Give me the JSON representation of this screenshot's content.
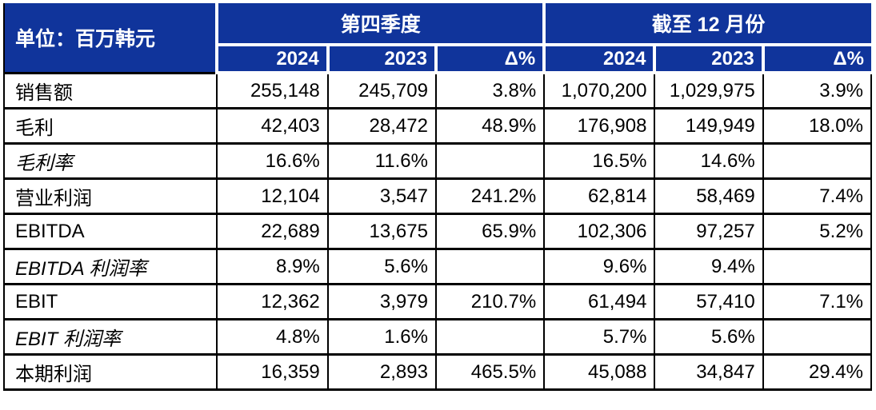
{
  "table": {
    "unit_label": "单位：百万韩元",
    "groups": [
      {
        "label": "第四季度",
        "columns": [
          "2024",
          "2023",
          "Δ%"
        ]
      },
      {
        "label": "截至 12 月份",
        "columns": [
          "2024",
          "2023",
          "Δ%"
        ]
      }
    ],
    "rows": [
      {
        "label": "销售额",
        "values": [
          "255,148",
          "245,709",
          "3.8%",
          "1,070,200",
          "1,029,975",
          "3.9%"
        ]
      },
      {
        "label": "毛利",
        "values": [
          "42,403",
          "28,472",
          "48.9%",
          "176,908",
          "149,949",
          "18.0%"
        ]
      },
      {
        "label": "毛利率",
        "values": [
          "16.6%",
          "11.6%",
          "",
          "16.5%",
          "14.6%",
          ""
        ]
      },
      {
        "label": "营业利润",
        "values": [
          "12,104",
          "3,547",
          "241.2%",
          "62,814",
          "58,469",
          "7.4%"
        ]
      },
      {
        "label": "EBITDA",
        "values": [
          "22,689",
          "13,675",
          "65.9%",
          "102,306",
          "97,257",
          "5.2%"
        ]
      },
      {
        "label": "EBITDA 利润率",
        "values": [
          "8.9%",
          "5.6%",
          "",
          "9.6%",
          "9.4%",
          ""
        ]
      },
      {
        "label": "EBIT",
        "values": [
          "12,362",
          "3,979",
          "210.7%",
          "61,494",
          "57,410",
          "7.1%"
        ]
      },
      {
        "label": "EBIT 利润率",
        "values": [
          "4.8%",
          "1.6%",
          "",
          "5.7%",
          "5.6%",
          ""
        ]
      },
      {
        "label": "本期利润",
        "values": [
          "16,359",
          "2,893",
          "465.5%",
          "45,088",
          "34,847",
          "29.4%"
        ]
      }
    ],
    "colors": {
      "header_bg": "#10349B",
      "header_text": "#FFFFFF",
      "body_text": "#000000",
      "border": "#000000"
    }
  }
}
